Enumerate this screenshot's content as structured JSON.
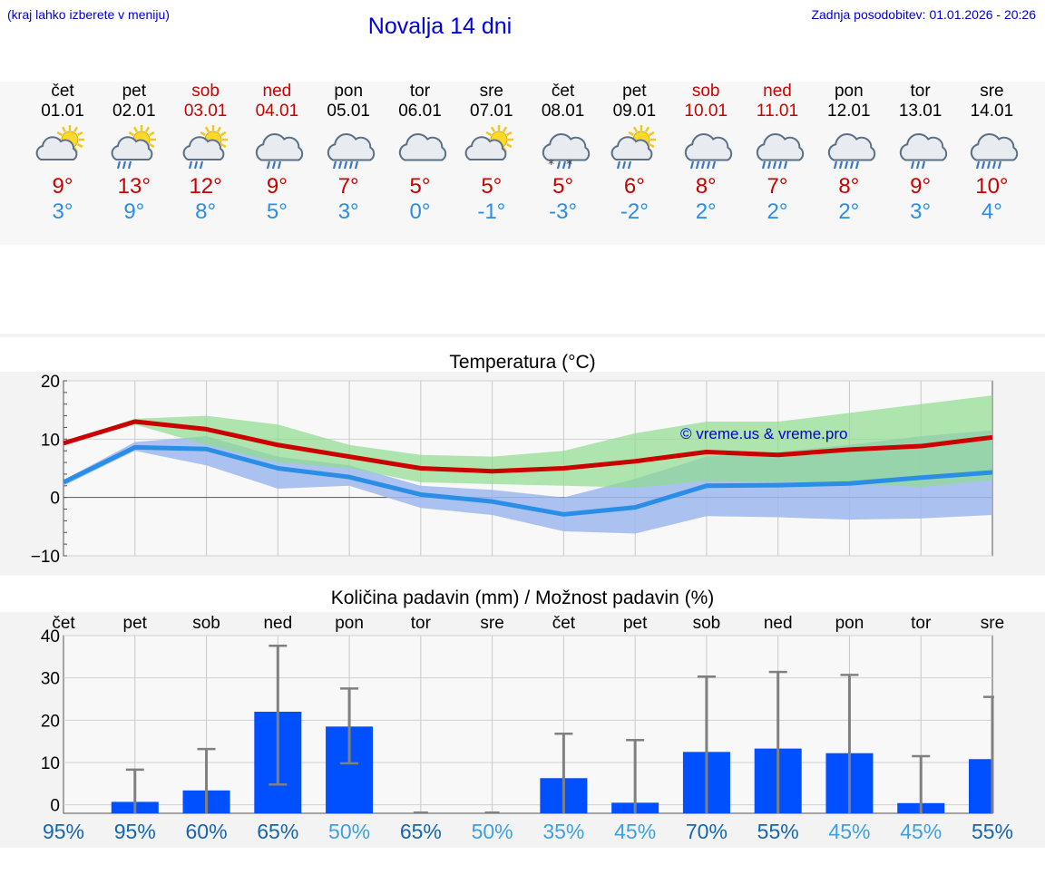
{
  "header": {
    "note": "(kraj lahko izberete v meniju)",
    "title": "Novalja 14 dni",
    "last_update": "Zadnja posodobitev: 01.01.2026 - 20:26"
  },
  "colors": {
    "max_temp": "#cc0000",
    "min_temp": "#2a8ee6",
    "max_band": "#8fdc8f",
    "min_band": "#9db8f0",
    "overlap_band": "#6aa8a0",
    "bar": "#0050ff",
    "errbar": "#808080",
    "pct_dark": "#1565b0",
    "pct_light": "#3fa0e0"
  },
  "days": [
    {
      "name": "čet",
      "date": "01.01",
      "weekend": false,
      "icon": "partly-cloudy-sun-icon",
      "max": "9°",
      "min": "3°"
    },
    {
      "name": "pet",
      "date": "02.01",
      "weekend": false,
      "icon": "sun-cloud-rain-icon",
      "max": "13°",
      "min": "9°"
    },
    {
      "name": "sob",
      "date": "03.01",
      "weekend": true,
      "icon": "sun-cloud-rain-icon",
      "max": "12°",
      "min": "8°"
    },
    {
      "name": "ned",
      "date": "04.01",
      "weekend": true,
      "icon": "cloud-rain-icon",
      "max": "9°",
      "min": "5°"
    },
    {
      "name": "pon",
      "date": "05.01",
      "weekend": false,
      "icon": "cloud-heavy-rain-icon",
      "max": "7°",
      "min": "3°"
    },
    {
      "name": "tor",
      "date": "06.01",
      "weekend": false,
      "icon": "cloud-icon",
      "max": "5°",
      "min": "0°"
    },
    {
      "name": "sre",
      "date": "07.01",
      "weekend": false,
      "icon": "partly-cloudy-sun-icon",
      "max": "5°",
      "min": "-1°"
    },
    {
      "name": "čet",
      "date": "08.01",
      "weekend": false,
      "icon": "cloud-sleet-icon",
      "max": "5°",
      "min": "-3°"
    },
    {
      "name": "pet",
      "date": "09.01",
      "weekend": false,
      "icon": "sun-cloud-rain-icon",
      "max": "6°",
      "min": "-2°"
    },
    {
      "name": "sob",
      "date": "10.01",
      "weekend": true,
      "icon": "cloud-heavy-rain-icon",
      "max": "8°",
      "min": "2°"
    },
    {
      "name": "ned",
      "date": "11.01",
      "weekend": true,
      "icon": "cloud-heavy-rain-icon",
      "max": "7°",
      "min": "2°"
    },
    {
      "name": "pon",
      "date": "12.01",
      "weekend": false,
      "icon": "cloud-heavy-rain-icon",
      "max": "8°",
      "min": "2°"
    },
    {
      "name": "tor",
      "date": "13.01",
      "weekend": false,
      "icon": "cloud-rain-icon",
      "max": "9°",
      "min": "3°"
    },
    {
      "name": "sre",
      "date": "14.01",
      "weekend": false,
      "icon": "cloud-heavy-rain-icon",
      "max": "10°",
      "min": "4°"
    }
  ],
  "chart_data": [
    {
      "type": "line",
      "title": "Temperatura (°C)",
      "watermark": "© vreme.us & vreme.pro",
      "xlabel": "",
      "ylabel": "",
      "ylim": [
        -10,
        20
      ],
      "yticks": [
        "20",
        "10",
        "0",
        "−10"
      ],
      "ytick_values": [
        20,
        10,
        0,
        -10
      ],
      "x": [
        0,
        1,
        2,
        3,
        4,
        5,
        6,
        7,
        8,
        9,
        10,
        11,
        12,
        13
      ],
      "series": [
        {
          "name": "max",
          "values": [
            9.3,
            13,
            11.7,
            9,
            7,
            5,
            4.5,
            5,
            6.2,
            7.8,
            7.3,
            8.2,
            8.8,
            10.3
          ]
        },
        {
          "name": "min",
          "values": [
            2.6,
            8.6,
            8.3,
            5,
            3.5,
            0.5,
            -0.7,
            -2.9,
            -1.7,
            2,
            2.1,
            2.4,
            3.4,
            4.3
          ]
        },
        {
          "name": "max_range_high",
          "values": [
            9.5,
            13.5,
            14,
            12.5,
            9,
            7.3,
            7,
            8,
            11,
            13,
            13,
            14.5,
            16,
            17.5
          ]
        },
        {
          "name": "max_range_low",
          "values": [
            9,
            12.5,
            9,
            6,
            5,
            2.6,
            2.3,
            2,
            1.7,
            2.8,
            2.7,
            2.4,
            1.8,
            3
          ]
        },
        {
          "name": "min_range_high",
          "values": [
            3,
            9.5,
            10.5,
            7,
            5.5,
            2,
            1.3,
            0,
            3.2,
            7,
            7.8,
            9,
            10.5,
            11.5
          ]
        },
        {
          "name": "min_range_low",
          "values": [
            2,
            8,
            5.5,
            1.5,
            2,
            -1.8,
            -3,
            -5.8,
            -6.2,
            -3.2,
            -3.4,
            -3.8,
            -3.6,
            -3
          ]
        }
      ]
    },
    {
      "type": "bar",
      "title": "Količina padavin (mm) / Možnost padavin (%)",
      "xlabel": "",
      "ylabel": "",
      "ylim": [
        -2,
        40
      ],
      "yticks": [
        "40",
        "30",
        "20",
        "10",
        "0"
      ],
      "ytick_values": [
        40,
        30,
        20,
        10,
        0
      ],
      "categories": [
        "čet",
        "pet",
        "sob",
        "ned",
        "pon",
        "tor",
        "sre",
        "čet",
        "pet",
        "sob",
        "ned",
        "pon",
        "tor",
        "sre"
      ],
      "values": [
        0,
        0.7,
        3.4,
        22,
        18.5,
        0,
        0,
        6.3,
        0.5,
        12.5,
        13.3,
        12.2,
        0.4,
        10.8
      ],
      "error_low": [
        0,
        0,
        0,
        4.8,
        9.8,
        0,
        0,
        0,
        0,
        0,
        0,
        0,
        0,
        0
      ],
      "error_high": [
        0,
        8.3,
        13.2,
        37.6,
        27.5,
        0,
        0,
        16.8,
        15.3,
        30.3,
        31.4,
        30.7,
        11.5,
        25.5
      ],
      "probabilities": [
        "95%",
        "95%",
        "60%",
        "65%",
        "50%",
        "65%",
        "50%",
        "35%",
        "45%",
        "70%",
        "55%",
        "45%",
        "45%",
        "55%"
      ],
      "probability_style": [
        "dark",
        "dark",
        "dark",
        "dark",
        "light",
        "dark",
        "light",
        "light",
        "light",
        "dark",
        "dark",
        "light",
        "light",
        "dark"
      ]
    }
  ]
}
